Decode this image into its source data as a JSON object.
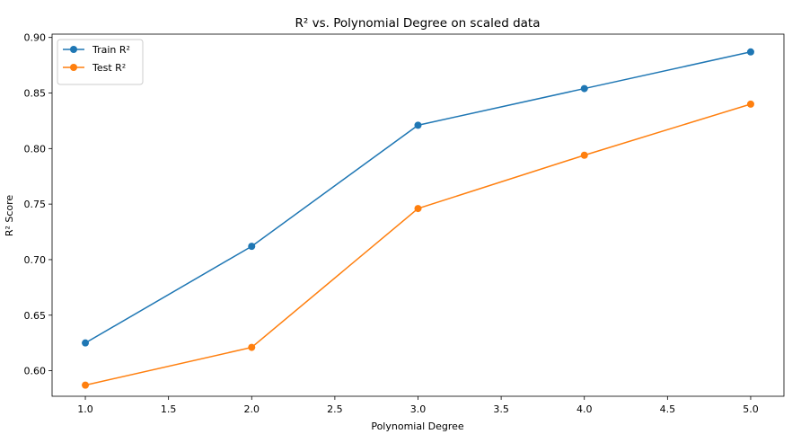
{
  "chart_data": {
    "type": "line",
    "title": "R² vs. Polynomial Degree on scaled data",
    "xlabel": "Polynomial Degree",
    "ylabel": "R² Score",
    "x": [
      1.0,
      2.0,
      3.0,
      4.0,
      5.0
    ],
    "xlim": [
      0.8,
      5.2
    ],
    "ylim": [
      0.577,
      0.903
    ],
    "xticks": [
      1.0,
      1.5,
      2.0,
      2.5,
      3.0,
      3.5,
      4.0,
      4.5,
      5.0
    ],
    "xtick_labels": [
      "1.0",
      "1.5",
      "2.0",
      "2.5",
      "3.0",
      "3.5",
      "4.0",
      "4.5",
      "5.0"
    ],
    "yticks": [
      0.6,
      0.65,
      0.7,
      0.75,
      0.8,
      0.85,
      0.9
    ],
    "ytick_labels": [
      "0.60",
      "0.65",
      "0.70",
      "0.75",
      "0.80",
      "0.85",
      "0.90"
    ],
    "grid": false,
    "legend_position": "top-left",
    "series": [
      {
        "name": "Train R²",
        "color": "#1f77b4",
        "marker": "circle",
        "values": [
          0.625,
          0.712,
          0.821,
          0.854,
          0.887
        ]
      },
      {
        "name": "Test R²",
        "color": "#ff7f0e",
        "marker": "circle",
        "values": [
          0.587,
          0.621,
          0.746,
          0.794,
          0.84
        ]
      }
    ]
  }
}
